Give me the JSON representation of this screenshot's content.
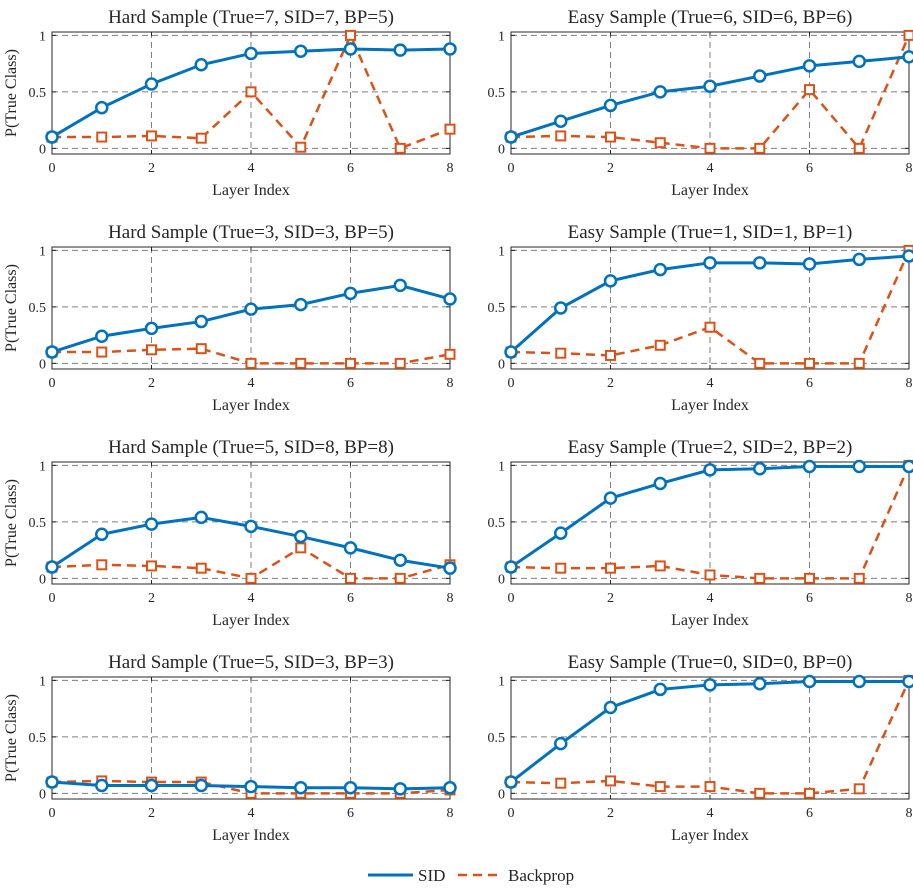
{
  "colors": {
    "sid": "#0072BD",
    "backprop": "#D95319",
    "grid": "#7f7f7f",
    "axis": "#262626"
  },
  "legend": {
    "placement": "bottom-center",
    "items": [
      "SID",
      "Backprop"
    ]
  },
  "chart_data": [
    {
      "type": "line",
      "title": "Hard Sample (True=7, SID=7, BP=5)",
      "xlabel": "Layer Index",
      "ylabel": "P(True Class)",
      "x": [
        0,
        1,
        2,
        3,
        4,
        5,
        6,
        7,
        8
      ],
      "xticks": [
        "0",
        "2",
        "4",
        "6",
        "8"
      ],
      "yticks": [
        "0",
        "0.5",
        "1"
      ],
      "xlim": [
        0,
        8
      ],
      "ylim": [
        -0.05,
        1.03
      ],
      "grid": true,
      "series": [
        {
          "name": "SID",
          "values": [
            0.1,
            0.36,
            0.57,
            0.74,
            0.84,
            0.86,
            0.88,
            0.87,
            0.88
          ]
        },
        {
          "name": "Backprop",
          "values": [
            0.1,
            0.1,
            0.11,
            0.09,
            0.5,
            0.01,
            1.0,
            0.0,
            0.17
          ]
        }
      ]
    },
    {
      "type": "line",
      "title": "Easy Sample (True=6, SID=6, BP=6)",
      "xlabel": "Layer Index",
      "ylabel": "",
      "x": [
        0,
        1,
        2,
        3,
        4,
        5,
        6,
        7,
        8
      ],
      "xticks": [
        "0",
        "2",
        "4",
        "6",
        "8"
      ],
      "yticks": [
        "0",
        "0.5",
        "1"
      ],
      "xlim": [
        0,
        8
      ],
      "ylim": [
        -0.05,
        1.03
      ],
      "grid": true,
      "series": [
        {
          "name": "SID",
          "values": [
            0.1,
            0.24,
            0.38,
            0.5,
            0.55,
            0.64,
            0.73,
            0.77,
            0.81
          ]
        },
        {
          "name": "Backprop",
          "values": [
            0.1,
            0.11,
            0.1,
            0.05,
            0.0,
            0.0,
            0.52,
            0.0,
            1.0
          ]
        }
      ]
    },
    {
      "type": "line",
      "title": "Hard Sample (True=3, SID=3, BP=5)",
      "xlabel": "Layer Index",
      "ylabel": "P(True Class)",
      "x": [
        0,
        1,
        2,
        3,
        4,
        5,
        6,
        7,
        8
      ],
      "xticks": [
        "0",
        "2",
        "4",
        "6",
        "8"
      ],
      "yticks": [
        "0",
        "0.5",
        "1"
      ],
      "xlim": [
        0,
        8
      ],
      "ylim": [
        -0.05,
        1.03
      ],
      "grid": true,
      "series": [
        {
          "name": "SID",
          "values": [
            0.1,
            0.24,
            0.31,
            0.37,
            0.48,
            0.52,
            0.62,
            0.69,
            0.57
          ]
        },
        {
          "name": "Backprop",
          "values": [
            0.1,
            0.1,
            0.12,
            0.13,
            0.0,
            0.0,
            0.0,
            0.0,
            0.08
          ]
        }
      ]
    },
    {
      "type": "line",
      "title": "Easy Sample (True=1, SID=1, BP=1)",
      "xlabel": "Layer Index",
      "ylabel": "",
      "x": [
        0,
        1,
        2,
        3,
        4,
        5,
        6,
        7,
        8
      ],
      "xticks": [
        "0",
        "2",
        "4",
        "6",
        "8"
      ],
      "yticks": [
        "0",
        "0.5",
        "1"
      ],
      "xlim": [
        0,
        8
      ],
      "ylim": [
        -0.05,
        1.03
      ],
      "grid": true,
      "series": [
        {
          "name": "SID",
          "values": [
            0.1,
            0.49,
            0.73,
            0.83,
            0.89,
            0.89,
            0.88,
            0.92,
            0.95
          ]
        },
        {
          "name": "Backprop",
          "values": [
            0.1,
            0.09,
            0.07,
            0.16,
            0.32,
            0.0,
            0.0,
            0.0,
            1.0
          ]
        }
      ]
    },
    {
      "type": "line",
      "title": "Hard Sample (True=5, SID=8, BP=8)",
      "xlabel": "Layer Index",
      "ylabel": "P(True Class)",
      "x": [
        0,
        1,
        2,
        3,
        4,
        5,
        6,
        7,
        8
      ],
      "xticks": [
        "0",
        "2",
        "4",
        "6",
        "8"
      ],
      "yticks": [
        "0",
        "0.5",
        "1"
      ],
      "xlim": [
        0,
        8
      ],
      "ylim": [
        -0.05,
        1.03
      ],
      "grid": true,
      "series": [
        {
          "name": "SID",
          "values": [
            0.1,
            0.39,
            0.48,
            0.54,
            0.46,
            0.37,
            0.27,
            0.16,
            0.09
          ]
        },
        {
          "name": "Backprop",
          "values": [
            0.1,
            0.12,
            0.11,
            0.09,
            0.0,
            0.27,
            0.0,
            0.0,
            0.12
          ]
        }
      ]
    },
    {
      "type": "line",
      "title": "Easy Sample (True=2, SID=2, BP=2)",
      "xlabel": "Layer Index",
      "ylabel": "",
      "x": [
        0,
        1,
        2,
        3,
        4,
        5,
        6,
        7,
        8
      ],
      "xticks": [
        "0",
        "2",
        "4",
        "6",
        "8"
      ],
      "yticks": [
        "0",
        "0.5",
        "1"
      ],
      "xlim": [
        0,
        8
      ],
      "ylim": [
        -0.05,
        1.03
      ],
      "grid": true,
      "series": [
        {
          "name": "SID",
          "values": [
            0.1,
            0.4,
            0.71,
            0.84,
            0.96,
            0.97,
            0.99,
            0.99,
            0.99
          ]
        },
        {
          "name": "Backprop",
          "values": [
            0.1,
            0.09,
            0.09,
            0.11,
            0.03,
            0.0,
            0.0,
            0.0,
            1.0
          ]
        }
      ]
    },
    {
      "type": "line",
      "title": "Hard Sample (True=5, SID=3, BP=3)",
      "xlabel": "Layer Index",
      "ylabel": "P(True Class)",
      "x": [
        0,
        1,
        2,
        3,
        4,
        5,
        6,
        7,
        8
      ],
      "xticks": [
        "0",
        "2",
        "4",
        "6",
        "8"
      ],
      "yticks": [
        "0",
        "0.5",
        "1"
      ],
      "xlim": [
        0,
        8
      ],
      "ylim": [
        -0.05,
        1.03
      ],
      "grid": true,
      "series": [
        {
          "name": "SID",
          "values": [
            0.1,
            0.07,
            0.07,
            0.07,
            0.06,
            0.05,
            0.05,
            0.04,
            0.05
          ]
        },
        {
          "name": "Backprop",
          "values": [
            0.1,
            0.11,
            0.1,
            0.1,
            0.0,
            0.0,
            0.0,
            0.0,
            0.03
          ]
        }
      ]
    },
    {
      "type": "line",
      "title": "Easy Sample (True=0, SID=0, BP=0)",
      "xlabel": "Layer Index",
      "ylabel": "",
      "x": [
        0,
        1,
        2,
        3,
        4,
        5,
        6,
        7,
        8
      ],
      "xticks": [
        "0",
        "2",
        "4",
        "6",
        "8"
      ],
      "yticks": [
        "0",
        "0.5",
        "1"
      ],
      "xlim": [
        0,
        8
      ],
      "ylim": [
        -0.05,
        1.03
      ],
      "grid": true,
      "series": [
        {
          "name": "SID",
          "values": [
            0.1,
            0.44,
            0.76,
            0.92,
            0.96,
            0.97,
            0.99,
            0.99,
            0.99
          ]
        },
        {
          "name": "Backprop",
          "values": [
            0.1,
            0.09,
            0.11,
            0.06,
            0.06,
            0.0,
            0.0,
            0.04,
            1.0
          ]
        }
      ]
    }
  ]
}
